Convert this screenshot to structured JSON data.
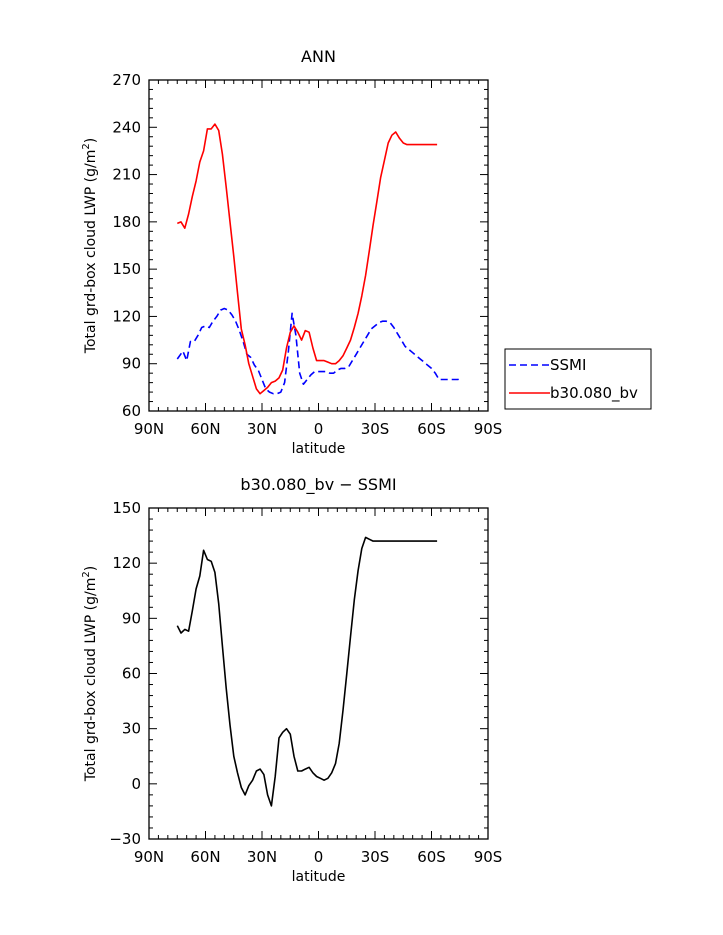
{
  "chart_data": [
    {
      "type": "line",
      "title": "ANN",
      "xlabel": "latitude",
      "ylabel_main": "Total grd-box cloud LWP (g/m",
      "ylabel_sup": "2",
      "ylabel_close": ")",
      "xlim": [
        90,
        -90
      ],
      "ylim": [
        60,
        270
      ],
      "xticks": [
        90,
        60,
        30,
        0,
        -30,
        -60,
        -90
      ],
      "xtick_labels": [
        "90N",
        "60N",
        "30N",
        "0",
        "30S",
        "60S",
        "90S"
      ],
      "yticks": [
        60,
        90,
        120,
        150,
        180,
        210,
        240,
        270
      ],
      "ytick_labels": [
        "60",
        "90",
        "120",
        "150",
        "180",
        "210",
        "240",
        "270"
      ],
      "legend_position": "right",
      "series": [
        {
          "name": "SSMI",
          "color": "#0000ff",
          "dash": "dashed",
          "x": [
            75,
            72,
            70,
            68,
            66,
            64,
            62,
            60,
            58,
            56,
            54,
            52,
            50,
            48,
            46,
            44,
            42,
            40,
            38,
            36,
            34,
            32,
            30,
            28,
            26,
            24,
            22,
            20,
            18,
            16,
            14,
            12,
            10,
            8,
            6,
            4,
            2,
            0,
            -2,
            -4,
            -6,
            -8,
            -10,
            -12,
            -14,
            -16,
            -18,
            -20,
            -22,
            -24,
            -26,
            -28,
            -30,
            -32,
            -34,
            -36,
            -38,
            -40,
            -42,
            -44,
            -46,
            -48,
            -50,
            -52,
            -54,
            -56,
            -58,
            -60,
            -62,
            -64,
            -66,
            -68,
            -70,
            -72,
            -74,
            -76
          ],
          "y": [
            93,
            98,
            92,
            104,
            104,
            108,
            113,
            114,
            113,
            117,
            120,
            124,
            125,
            124,
            121,
            117,
            111,
            104,
            96,
            94,
            89,
            86,
            80,
            74,
            72,
            71,
            71,
            72,
            78,
            98,
            122,
            108,
            84,
            77,
            80,
            83,
            85,
            85,
            85,
            85,
            84,
            84,
            86,
            87,
            87,
            88,
            92,
            96,
            100,
            104,
            108,
            112,
            114,
            116,
            117,
            117,
            116,
            113,
            109,
            105,
            101,
            99,
            97,
            95,
            93,
            91,
            89,
            87,
            84,
            80,
            80,
            80,
            80,
            80,
            80,
            81
          ]
        },
        {
          "name": "b30.080_bv",
          "color": "#ff0000",
          "dash": "solid",
          "x": [
            75,
            73,
            71,
            69,
            67,
            65,
            63,
            61,
            59,
            57,
            55,
            53,
            51,
            49,
            47,
            45,
            43,
            41,
            39,
            37,
            35,
            33,
            31,
            29,
            27,
            25,
            23,
            21,
            19,
            17,
            15,
            13,
            11,
            9,
            7,
            5,
            3,
            1,
            -1,
            -3,
            -5,
            -7,
            -9,
            -11,
            -13,
            -15,
            -17,
            -19,
            -21,
            -23,
            -25,
            -27,
            -29,
            -31,
            -33,
            -35,
            -37,
            -39,
            -41,
            -43,
            -45,
            -47,
            -49,
            -51,
            -53,
            -55,
            -57,
            -59,
            -61,
            -63
          ],
          "y": [
            179,
            180,
            176,
            185,
            196,
            206,
            218,
            225,
            239,
            239,
            242,
            238,
            223,
            202,
            180,
            158,
            135,
            112,
            102,
            90,
            82,
            74,
            71,
            73,
            75,
            78,
            79,
            81,
            86,
            100,
            110,
            114,
            110,
            105,
            111,
            110,
            100,
            92,
            92,
            92,
            91,
            90,
            90,
            92,
            95,
            100,
            105,
            113,
            122,
            133,
            146,
            162,
            178,
            193,
            208,
            219,
            230,
            235,
            237,
            233,
            230,
            229,
            229,
            229,
            229,
            229,
            229,
            229,
            229,
            229
          ]
        }
      ]
    },
    {
      "type": "line",
      "title": "b30.080_bv − SSMI",
      "xlabel": "latitude",
      "ylabel_main": "Total grd-box cloud LWP (g/m",
      "ylabel_sup": "2",
      "ylabel_close": ")",
      "xlim": [
        90,
        -90
      ],
      "ylim": [
        -30,
        150
      ],
      "xticks": [
        90,
        60,
        30,
        0,
        -30,
        -60,
        -90
      ],
      "xtick_labels": [
        "90N",
        "60N",
        "30N",
        "0",
        "30S",
        "60S",
        "90S"
      ],
      "yticks": [
        -30,
        0,
        30,
        60,
        90,
        120,
        150
      ],
      "ytick_labels": [
        "−30",
        "0",
        "30",
        "60",
        "90",
        "120",
        "150"
      ],
      "series": [
        {
          "color": "#000000",
          "dash": "solid",
          "x": [
            75,
            73,
            71,
            69,
            67,
            65,
            63,
            61,
            59,
            57,
            55,
            53,
            51,
            49,
            47,
            45,
            43,
            41,
            39,
            37,
            35,
            33,
            31,
            29,
            27,
            25,
            23,
            21,
            19,
            17,
            15,
            13,
            11,
            9,
            7,
            5,
            3,
            1,
            -1,
            -3,
            -5,
            -7,
            -9,
            -11,
            -13,
            -15,
            -17,
            -19,
            -21,
            -23,
            -25,
            -27,
            -29,
            -31,
            -33,
            -35,
            -37,
            -39,
            -41,
            -43,
            -45,
            -47,
            -49,
            -51,
            -53,
            -55,
            -57,
            -59,
            -61,
            -63
          ],
          "y": [
            86,
            82,
            84,
            83,
            94,
            106,
            113,
            127,
            122,
            121,
            115,
            98,
            75,
            52,
            32,
            15,
            6,
            -2,
            -6,
            -1,
            2,
            7,
            8,
            5,
            -6,
            -12,
            4,
            25,
            28,
            30,
            27,
            15,
            7,
            7,
            8,
            9,
            6,
            4,
            3,
            2,
            3,
            6,
            11,
            22,
            40,
            60,
            80,
            100,
            116,
            128,
            134,
            133,
            132,
            132,
            132,
            132,
            132,
            132,
            132,
            132,
            132,
            132,
            132,
            132,
            132,
            132,
            132,
            132,
            132,
            132
          ]
        }
      ]
    }
  ]
}
